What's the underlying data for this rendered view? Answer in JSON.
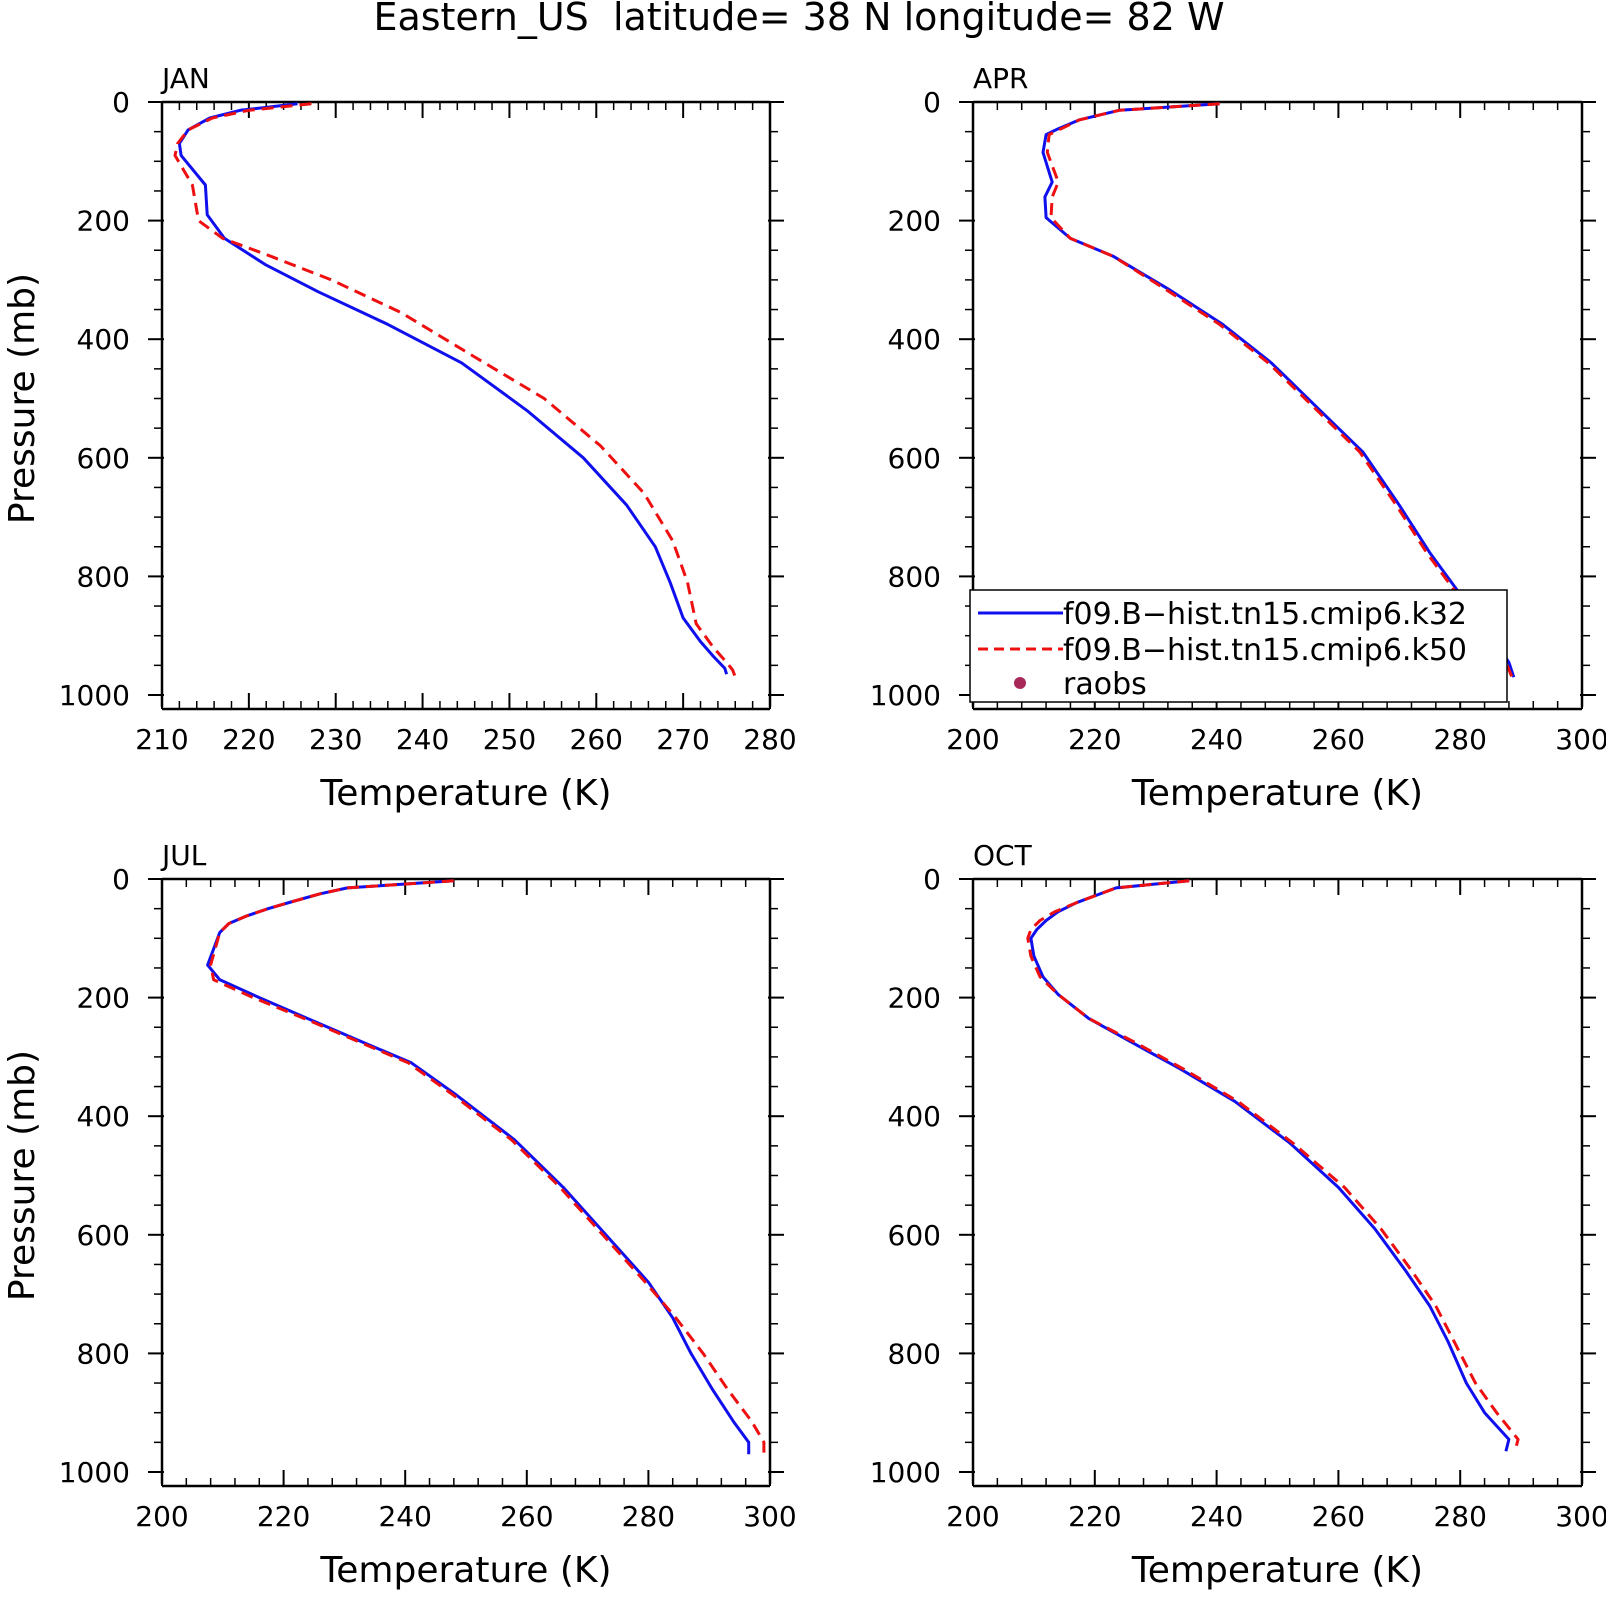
{
  "figure_title": "Eastern_US  latitude= 38 N longitude= 82 W",
  "colors": {
    "k32": "#1010ee",
    "k50": "#ee1010",
    "raobs": "#a8285a"
  },
  "legend": {
    "placement": "inside APR panel, lower left",
    "entries": [
      {
        "label": "f09.B−hist.tn15.cmip6.k32",
        "style": "solid",
        "color": "#1010ee"
      },
      {
        "label": "f09.B−hist.tn15.cmip6.k50",
        "style": "dashed",
        "color": "#ee1010"
      },
      {
        "label": "raobs",
        "style": "dot",
        "color": "#a8285a"
      }
    ]
  },
  "chart_data": [
    {
      "type": "line",
      "title": "JAN",
      "xlabel": "Temperature (K)",
      "ylabel": "Pressure (mb)",
      "xlim": [
        210,
        280
      ],
      "ylim": [
        1000,
        0
      ],
      "xticks": [
        "210",
        "220",
        "230",
        "240",
        "250",
        "260",
        "270",
        "280"
      ],
      "yticks": [
        "0",
        "200",
        "400",
        "600",
        "800",
        "1000"
      ],
      "series": [
        {
          "name": "f09.B−hist.tn15.cmip6.k32",
          "x": [
            225.6,
            219,
            215.5,
            213,
            212,
            212.2,
            215,
            215.2,
            217.2,
            222,
            228,
            236,
            244.5,
            252,
            258.5,
            263.5,
            266.8,
            268.5,
            270,
            272,
            273.5,
            274.8,
            275
          ],
          "y": [
            3,
            14,
            27,
            47,
            70,
            90,
            140,
            190,
            230,
            275,
            320,
            375,
            440,
            520,
            600,
            680,
            750,
            810,
            870,
            910,
            935,
            955,
            965
          ]
        },
        {
          "name": "f09.B−hist.tn15.cmip6.k50",
          "x": [
            227.2,
            220,
            215.8,
            213,
            211.8,
            211.5,
            213.5,
            214.2,
            217,
            222.5,
            229.5,
            237.5,
            246,
            254,
            260.5,
            265.5,
            268.8,
            270.5,
            271.5,
            273.5,
            275,
            275.7,
            276
          ],
          "y": [
            3,
            14,
            27,
            47,
            70,
            90,
            140,
            200,
            230,
            260,
            300,
            355,
            430,
            500,
            580,
            660,
            740,
            810,
            880,
            920,
            945,
            958,
            970
          ]
        }
      ]
    },
    {
      "type": "line",
      "title": "APR",
      "xlabel": "Temperature (K)",
      "ylabel": "",
      "xlim": [
        200,
        300
      ],
      "ylim": [
        1000,
        0
      ],
      "xticks": [
        "200",
        "220",
        "240",
        "260",
        "280",
        "300"
      ],
      "yticks": [
        "0",
        "200",
        "400",
        "600",
        "800",
        "1000"
      ],
      "series": [
        {
          "name": "f09.B−hist.tn15.cmip6.k32",
          "x": [
            240.5,
            224,
            217.5,
            214,
            212,
            211.5,
            213,
            211.8,
            212,
            216,
            223,
            232,
            241,
            249,
            257,
            264,
            270,
            275,
            280,
            284.5,
            288,
            288.8
          ],
          "y": [
            3,
            14,
            30,
            45,
            55,
            85,
            135,
            160,
            195,
            230,
            260,
            315,
            375,
            440,
            520,
            590,
            680,
            760,
            830,
            890,
            945,
            970
          ]
        },
        {
          "name": "f09.B−hist.tn15.cmip6.k50",
          "x": [
            240.5,
            224,
            217.5,
            214.5,
            212.5,
            212.2,
            214,
            213,
            212.8,
            216,
            223,
            231.5,
            240.5,
            248.5,
            256.5,
            263.5,
            269.5,
            274.5,
            279.5,
            284,
            287.5,
            288.5
          ],
          "y": [
            3,
            14,
            30,
            45,
            55,
            85,
            135,
            160,
            195,
            230,
            260,
            315,
            375,
            440,
            520,
            590,
            680,
            760,
            830,
            890,
            945,
            970
          ]
        }
      ]
    },
    {
      "type": "line",
      "title": "JUL",
      "xlabel": "Temperature (K)",
      "ylabel": "Pressure (mb)",
      "xlim": [
        200,
        300
      ],
      "ylim": [
        1000,
        0
      ],
      "xticks": [
        "200",
        "220",
        "240",
        "260",
        "280",
        "300"
      ],
      "yticks": [
        "0",
        "200",
        "400",
        "600",
        "800",
        "1000"
      ],
      "series": [
        {
          "name": "f09.B−hist.tn15.cmip6.k32",
          "x": [
            248,
            230.5,
            226,
            221.5,
            217.5,
            214,
            211,
            209.5,
            207.5,
            209.5,
            216,
            225,
            233,
            241,
            248.5,
            258,
            266,
            273,
            280,
            284,
            287,
            290.5,
            294,
            296.5,
            296.5
          ],
          "y": [
            3,
            15,
            25,
            38,
            50,
            62,
            75,
            90,
            145,
            170,
            200,
            240,
            275,
            310,
            365,
            440,
            520,
            600,
            680,
            740,
            800,
            860,
            915,
            950,
            970
          ]
        },
        {
          "name": "f09.B−hist.tn15.cmip6.k50",
          "x": [
            248,
            230.5,
            226,
            221.5,
            217.5,
            214,
            211,
            209.5,
            208,
            208.5,
            215,
            224.5,
            232.5,
            240.5,
            248,
            257.5,
            265.5,
            272.5,
            279.5,
            284.5,
            289,
            293,
            297,
            299,
            299
          ],
          "y": [
            3,
            15,
            25,
            38,
            50,
            62,
            75,
            90,
            145,
            170,
            200,
            240,
            275,
            310,
            365,
            440,
            520,
            600,
            680,
            740,
            800,
            860,
            915,
            950,
            975
          ]
        }
      ]
    },
    {
      "type": "line",
      "title": "OCT",
      "xlabel": "Temperature (K)",
      "ylabel": "",
      "xlim": [
        200,
        300
      ],
      "ylim": [
        1000,
        0
      ],
      "xticks": [
        "200",
        "220",
        "240",
        "260",
        "280",
        "300"
      ],
      "yticks": [
        "0",
        "200",
        "400",
        "600",
        "800",
        "1000"
      ],
      "series": [
        {
          "name": "f09.B−hist.tn15.cmip6.k32",
          "x": [
            235.5,
            223.5,
            217,
            214,
            212,
            210.5,
            209.5,
            210,
            211.5,
            214,
            219,
            226,
            234,
            243,
            252,
            260,
            266,
            271,
            275,
            278,
            281,
            284,
            288,
            287.5
          ],
          "y": [
            3,
            15,
            40,
            55,
            70,
            85,
            100,
            130,
            165,
            195,
            235,
            275,
            320,
            375,
            445,
            520,
            590,
            660,
            720,
            780,
            850,
            900,
            945,
            965
          ]
        },
        {
          "name": "f09.B−hist.tn15.cmip6.k50",
          "x": [
            235.5,
            223.5,
            217,
            213.5,
            211,
            209.5,
            209,
            209.5,
            211,
            214,
            219,
            226.5,
            234.5,
            243.5,
            252.5,
            261,
            267,
            272,
            276,
            279,
            282.5,
            286,
            289.5,
            289
          ],
          "y": [
            3,
            15,
            40,
            55,
            70,
            85,
            100,
            130,
            165,
            195,
            235,
            275,
            320,
            375,
            445,
            520,
            590,
            660,
            720,
            780,
            850,
            900,
            945,
            965
          ]
        }
      ]
    }
  ]
}
